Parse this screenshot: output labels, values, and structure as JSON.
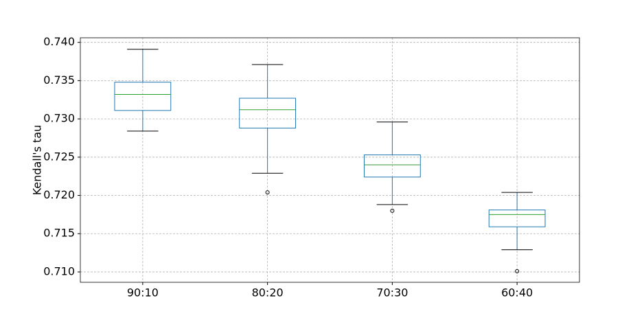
{
  "chart_data": {
    "type": "box",
    "ylabel": "Kendall's tau",
    "categories": [
      "90:10",
      "80:20",
      "70:30",
      "60:40"
    ],
    "boxes": [
      {
        "whisker_low": 0.7284,
        "q1": 0.7311,
        "median": 0.7332,
        "q3": 0.7348,
        "whisker_high": 0.7391,
        "outliers": []
      },
      {
        "whisker_low": 0.7229,
        "q1": 0.7288,
        "median": 0.7312,
        "q3": 0.7327,
        "whisker_high": 0.7371,
        "outliers": [
          0.7204
        ]
      },
      {
        "whisker_low": 0.7188,
        "q1": 0.7224,
        "median": 0.724,
        "q3": 0.7253,
        "whisker_high": 0.7296,
        "outliers": [
          0.718
        ]
      },
      {
        "whisker_low": 0.7129,
        "q1": 0.7159,
        "median": 0.7175,
        "q3": 0.7181,
        "whisker_high": 0.7204,
        "outliers": [
          0.7101
        ]
      }
    ],
    "box_color": "#1f77b4",
    "median_color": "#2ca02c",
    "whisker_color": "#000000",
    "ylim": [
      0.70865,
      0.7406
    ],
    "yticks": [
      {
        "value": 0.71,
        "label": "0.710"
      },
      {
        "value": 0.715,
        "label": "0.715"
      },
      {
        "value": 0.72,
        "label": "0.720"
      },
      {
        "value": 0.725,
        "label": "0.725"
      },
      {
        "value": 0.73,
        "label": "0.730"
      },
      {
        "value": 0.735,
        "label": "0.735"
      },
      {
        "value": 0.74,
        "label": "0.740"
      }
    ],
    "grid": true
  }
}
